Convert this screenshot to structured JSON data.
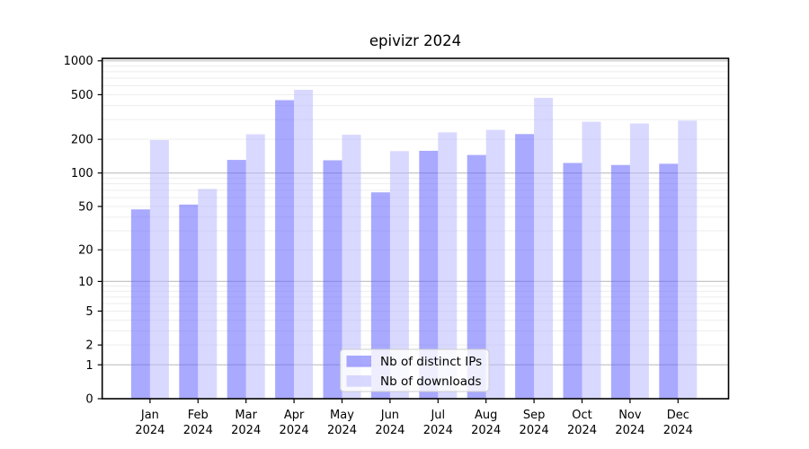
{
  "chart_data": {
    "type": "bar",
    "title": "epivizr 2024",
    "x": [
      "Jan 2024",
      "Feb 2024",
      "Mar 2024",
      "Apr 2024",
      "May 2024",
      "Jun 2024",
      "Jul 2024",
      "Aug 2024",
      "Sep 2024",
      "Oct 2024",
      "Nov 2024",
      "Dec 2024"
    ],
    "x_tick_month": [
      "Jan",
      "Feb",
      "Mar",
      "Apr",
      "May",
      "Jun",
      "Jul",
      "Aug",
      "Sep",
      "Oct",
      "Nov",
      "Dec"
    ],
    "x_tick_year": "2024",
    "series": [
      {
        "name": "Nb of distinct IPs",
        "color": "rgba(98,98,255,0.55)",
        "values": [
          47,
          52,
          131,
          447,
          130,
          67,
          158,
          145,
          223,
          123,
          118,
          121
        ]
      },
      {
        "name": "Nb of downloads",
        "color": "rgba(186,186,255,0.55)",
        "values": [
          197,
          72,
          222,
          553,
          220,
          157,
          231,
          243,
          469,
          287,
          277,
          294
        ]
      }
    ],
    "y_axis": {
      "scale": "log10(1+y)",
      "tick_values": [
        0,
        1,
        2,
        5,
        10,
        20,
        50,
        100,
        200,
        500,
        1000
      ],
      "major_grid_values": [
        1,
        10,
        100,
        1000
      ],
      "minor_grid_values": [
        2,
        3,
        4,
        5,
        6,
        7,
        8,
        9,
        20,
        30,
        40,
        50,
        60,
        70,
        80,
        90,
        200,
        300,
        400,
        500,
        600,
        700,
        800,
        900
      ],
      "ylim": [
        0,
        1050
      ]
    },
    "legend": {
      "position": "lower center inside plot",
      "entries": [
        "Nb of distinct IPs",
        "Nb of downloads"
      ]
    },
    "grid": true,
    "colors": {
      "grid_major": "#c6c6c6",
      "grid_minor": "#ededed",
      "spine": "#000000",
      "legend_border": "#cccccc",
      "legend_bg": "rgba(255,255,255,0.8)",
      "text": "#000000"
    }
  }
}
